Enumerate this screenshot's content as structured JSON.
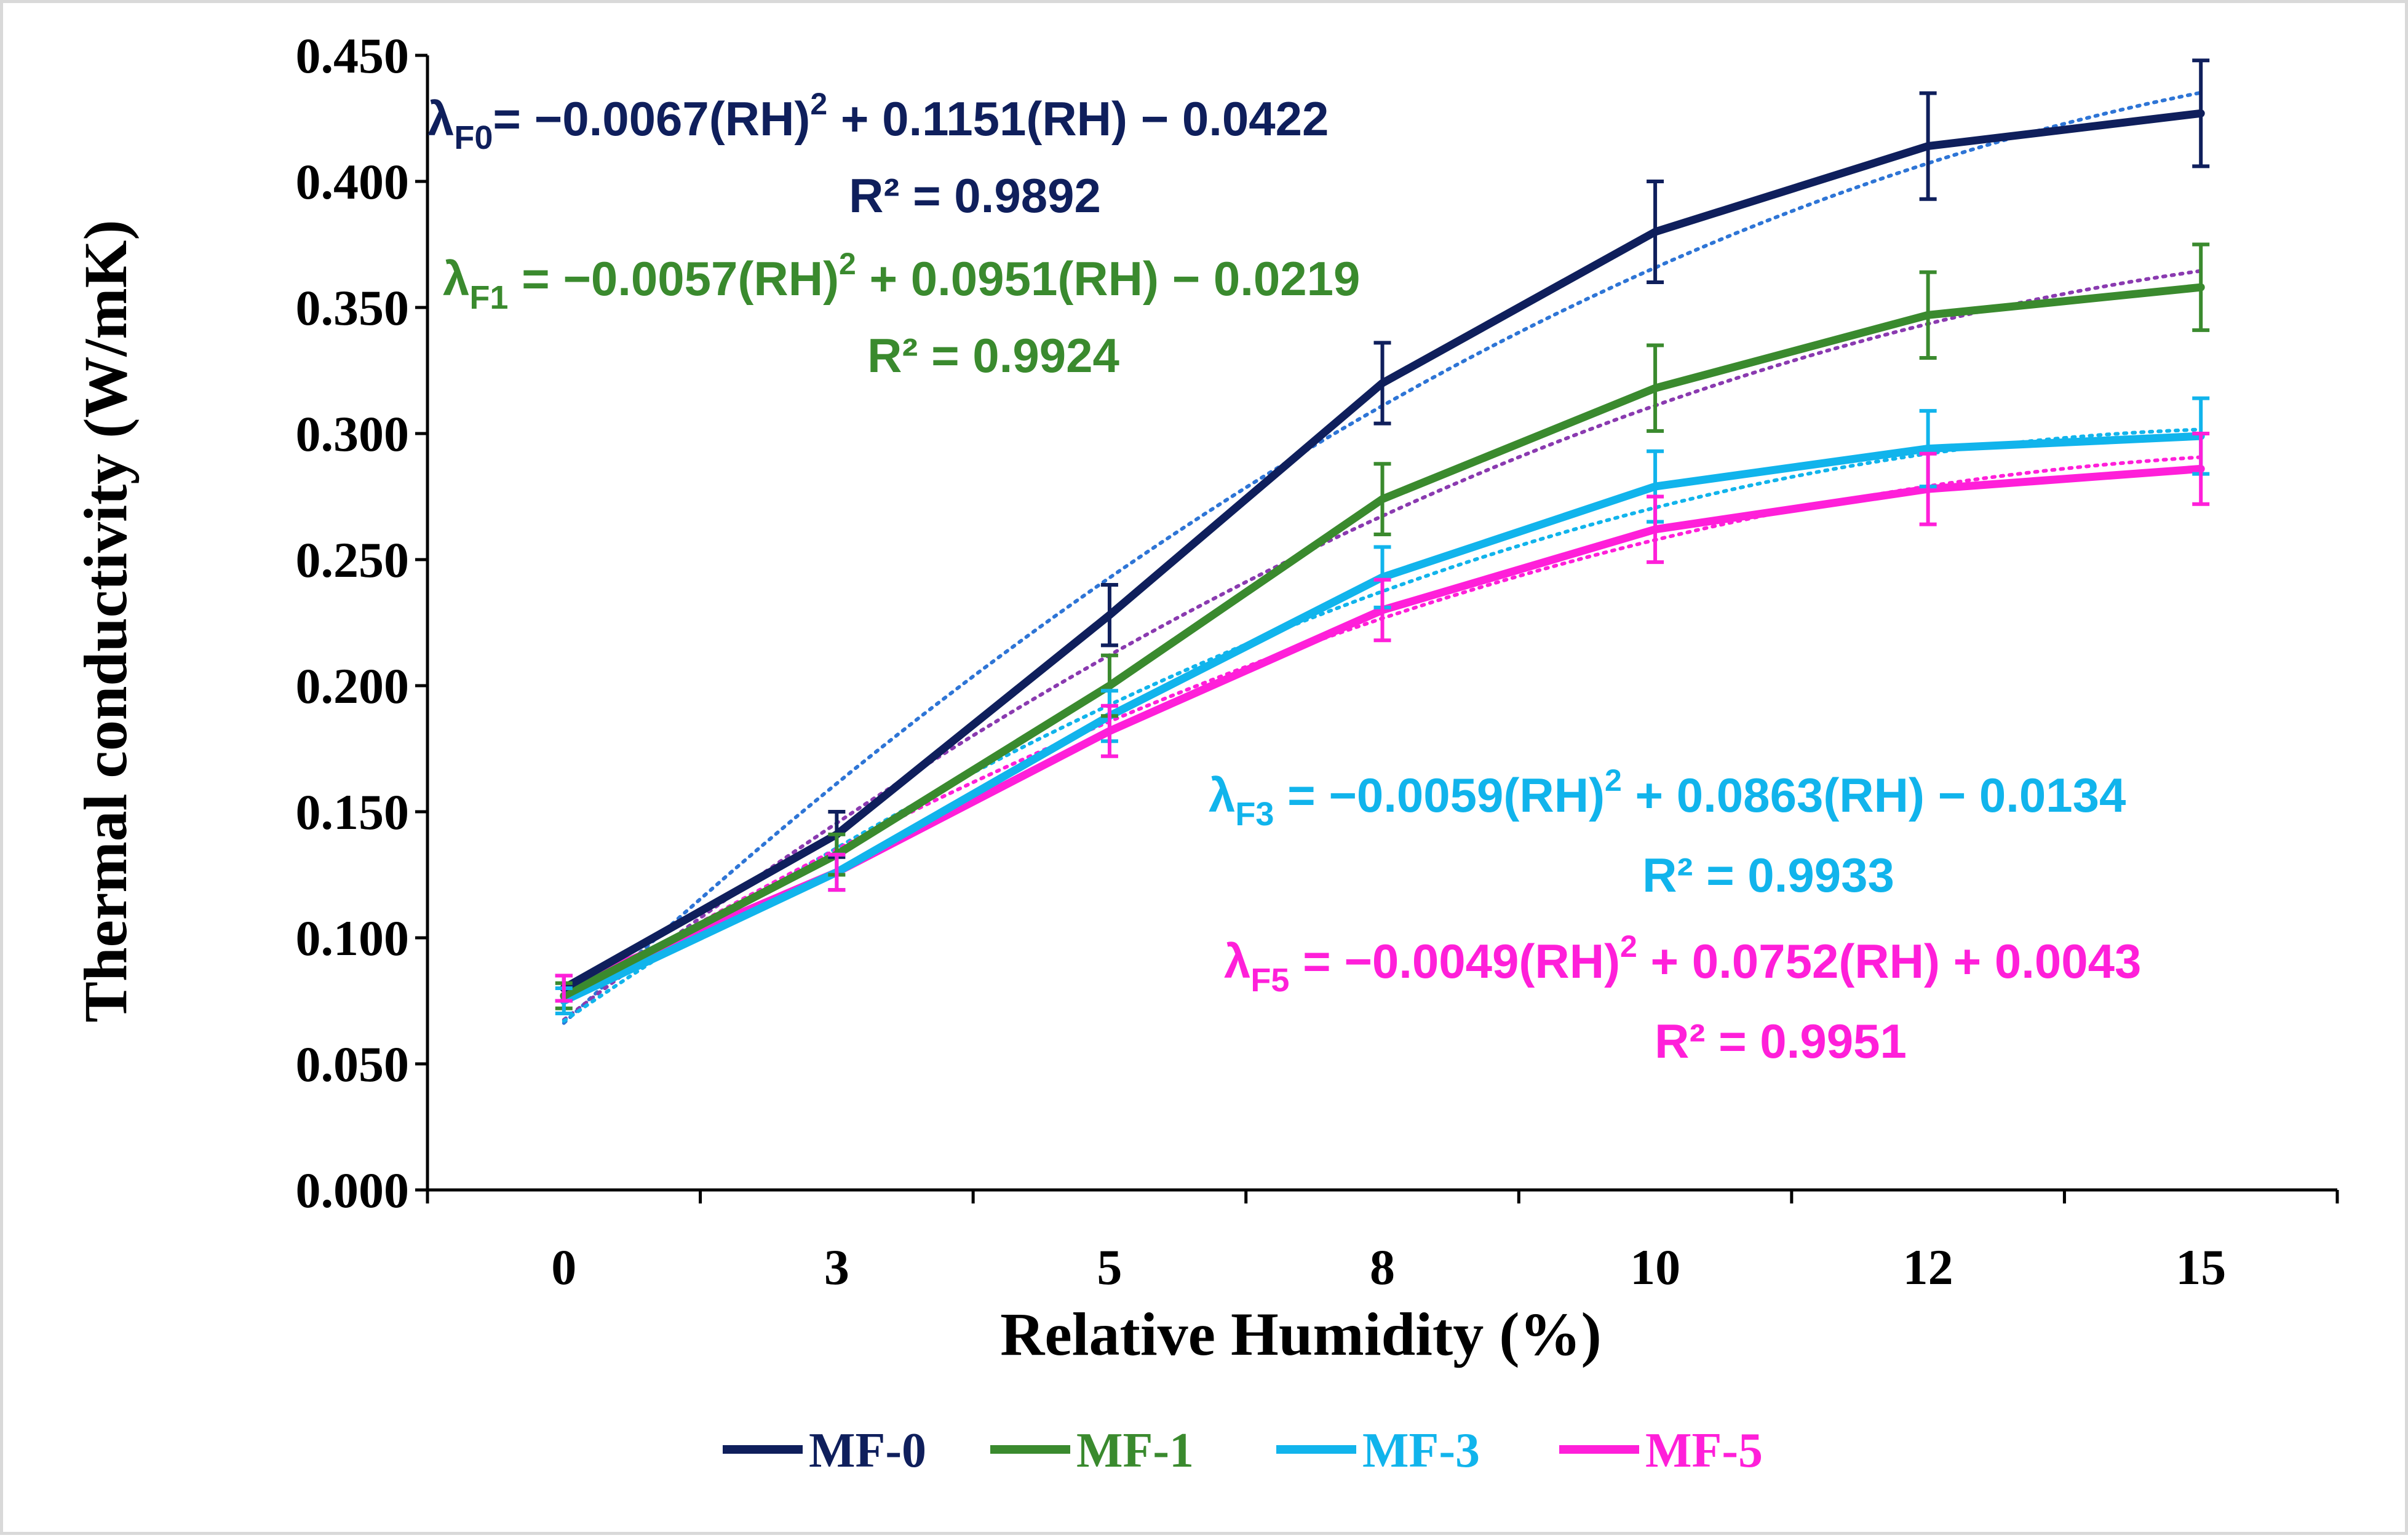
{
  "chart_data": {
    "type": "line",
    "title": "",
    "xlabel": "Relative Humidity (%)",
    "ylabel": "Thermal conductivity (W/mK)",
    "categories": [
      "0",
      "3",
      "5",
      "8",
      "10",
      "12",
      "15"
    ],
    "ylim": [
      0,
      0.45
    ],
    "yticks": [
      "0.000",
      "0.050",
      "0.100",
      "0.150",
      "0.200",
      "0.250",
      "0.300",
      "0.350",
      "0.400",
      "0.450"
    ],
    "grid": false,
    "legend_position": "bottom",
    "series": [
      {
        "name": "MF-0",
        "color": "#0f1f5c",
        "values": [
          0.08,
          0.141,
          0.228,
          0.32,
          0.38,
          0.414,
          0.427
        ],
        "errors": [
          0.005,
          0.009,
          0.012,
          0.016,
          0.02,
          0.021,
          0.021
        ],
        "trendline": {
          "a": -0.0067,
          "b": 0.1151,
          "c": -0.0422,
          "color": "#2e75d6"
        }
      },
      {
        "name": "MF-1",
        "color": "#3a8a2e",
        "values": [
          0.077,
          0.133,
          0.2,
          0.274,
          0.318,
          0.347,
          0.358
        ],
        "errors": [
          0.005,
          0.008,
          0.012,
          0.014,
          0.017,
          0.017,
          0.017
        ],
        "trendline": {
          "a": -0.0057,
          "b": 0.0951,
          "c": -0.0219,
          "color": "#8a3ab0"
        }
      },
      {
        "name": "MF-3",
        "color": "#11b4ec",
        "values": [
          0.075,
          0.126,
          0.188,
          0.243,
          0.279,
          0.294,
          0.299
        ],
        "errors": [
          0.005,
          0.007,
          0.01,
          0.012,
          0.014,
          0.015,
          0.015
        ],
        "trendline": {
          "a": -0.0059,
          "b": 0.0863,
          "c": -0.0134,
          "color": "#11b4ec"
        }
      },
      {
        "name": "MF-5",
        "color": "#ff1fd9",
        "values": [
          0.08,
          0.126,
          0.182,
          0.23,
          0.262,
          0.278,
          0.286
        ],
        "errors": [
          0.005,
          0.007,
          0.01,
          0.012,
          0.013,
          0.014,
          0.014
        ],
        "trendline": {
          "a": -0.0049,
          "b": 0.0752,
          "c": 0.0043,
          "color": "#ff1fd9"
        }
      }
    ],
    "annotations": [
      {
        "symbol": "λ",
        "sub": "F0",
        "rest1": "= −0.0067(RH)",
        "sup": "2",
        "rest2": " + 0.1151(RH) − 0.0422",
        "r2": "R² = 0.9892",
        "color": "#0f1f5c"
      },
      {
        "symbol": "λ",
        "sub": "F1",
        "rest1": " = −0.0057(RH)",
        "sup": "2",
        "rest2": " + 0.0951(RH) − 0.0219",
        "r2": "R² = 0.9924",
        "color": "#3a8a2e"
      },
      {
        "symbol": "λ",
        "sub": "F3",
        "rest1": " = −0.0059(RH)",
        "sup": "2",
        "rest2": " + 0.0863(RH) − 0.0134",
        "r2": "R² = 0.9933",
        "color": "#11b4ec"
      },
      {
        "symbol": "λ",
        "sub": "F5",
        "rest1": " = −0.0049(RH)",
        "sup": "2",
        "rest2": " + 0.0752(RH) + 0.0043",
        "r2": "R² = 0.9951",
        "color": "#ff1fd9"
      }
    ]
  }
}
